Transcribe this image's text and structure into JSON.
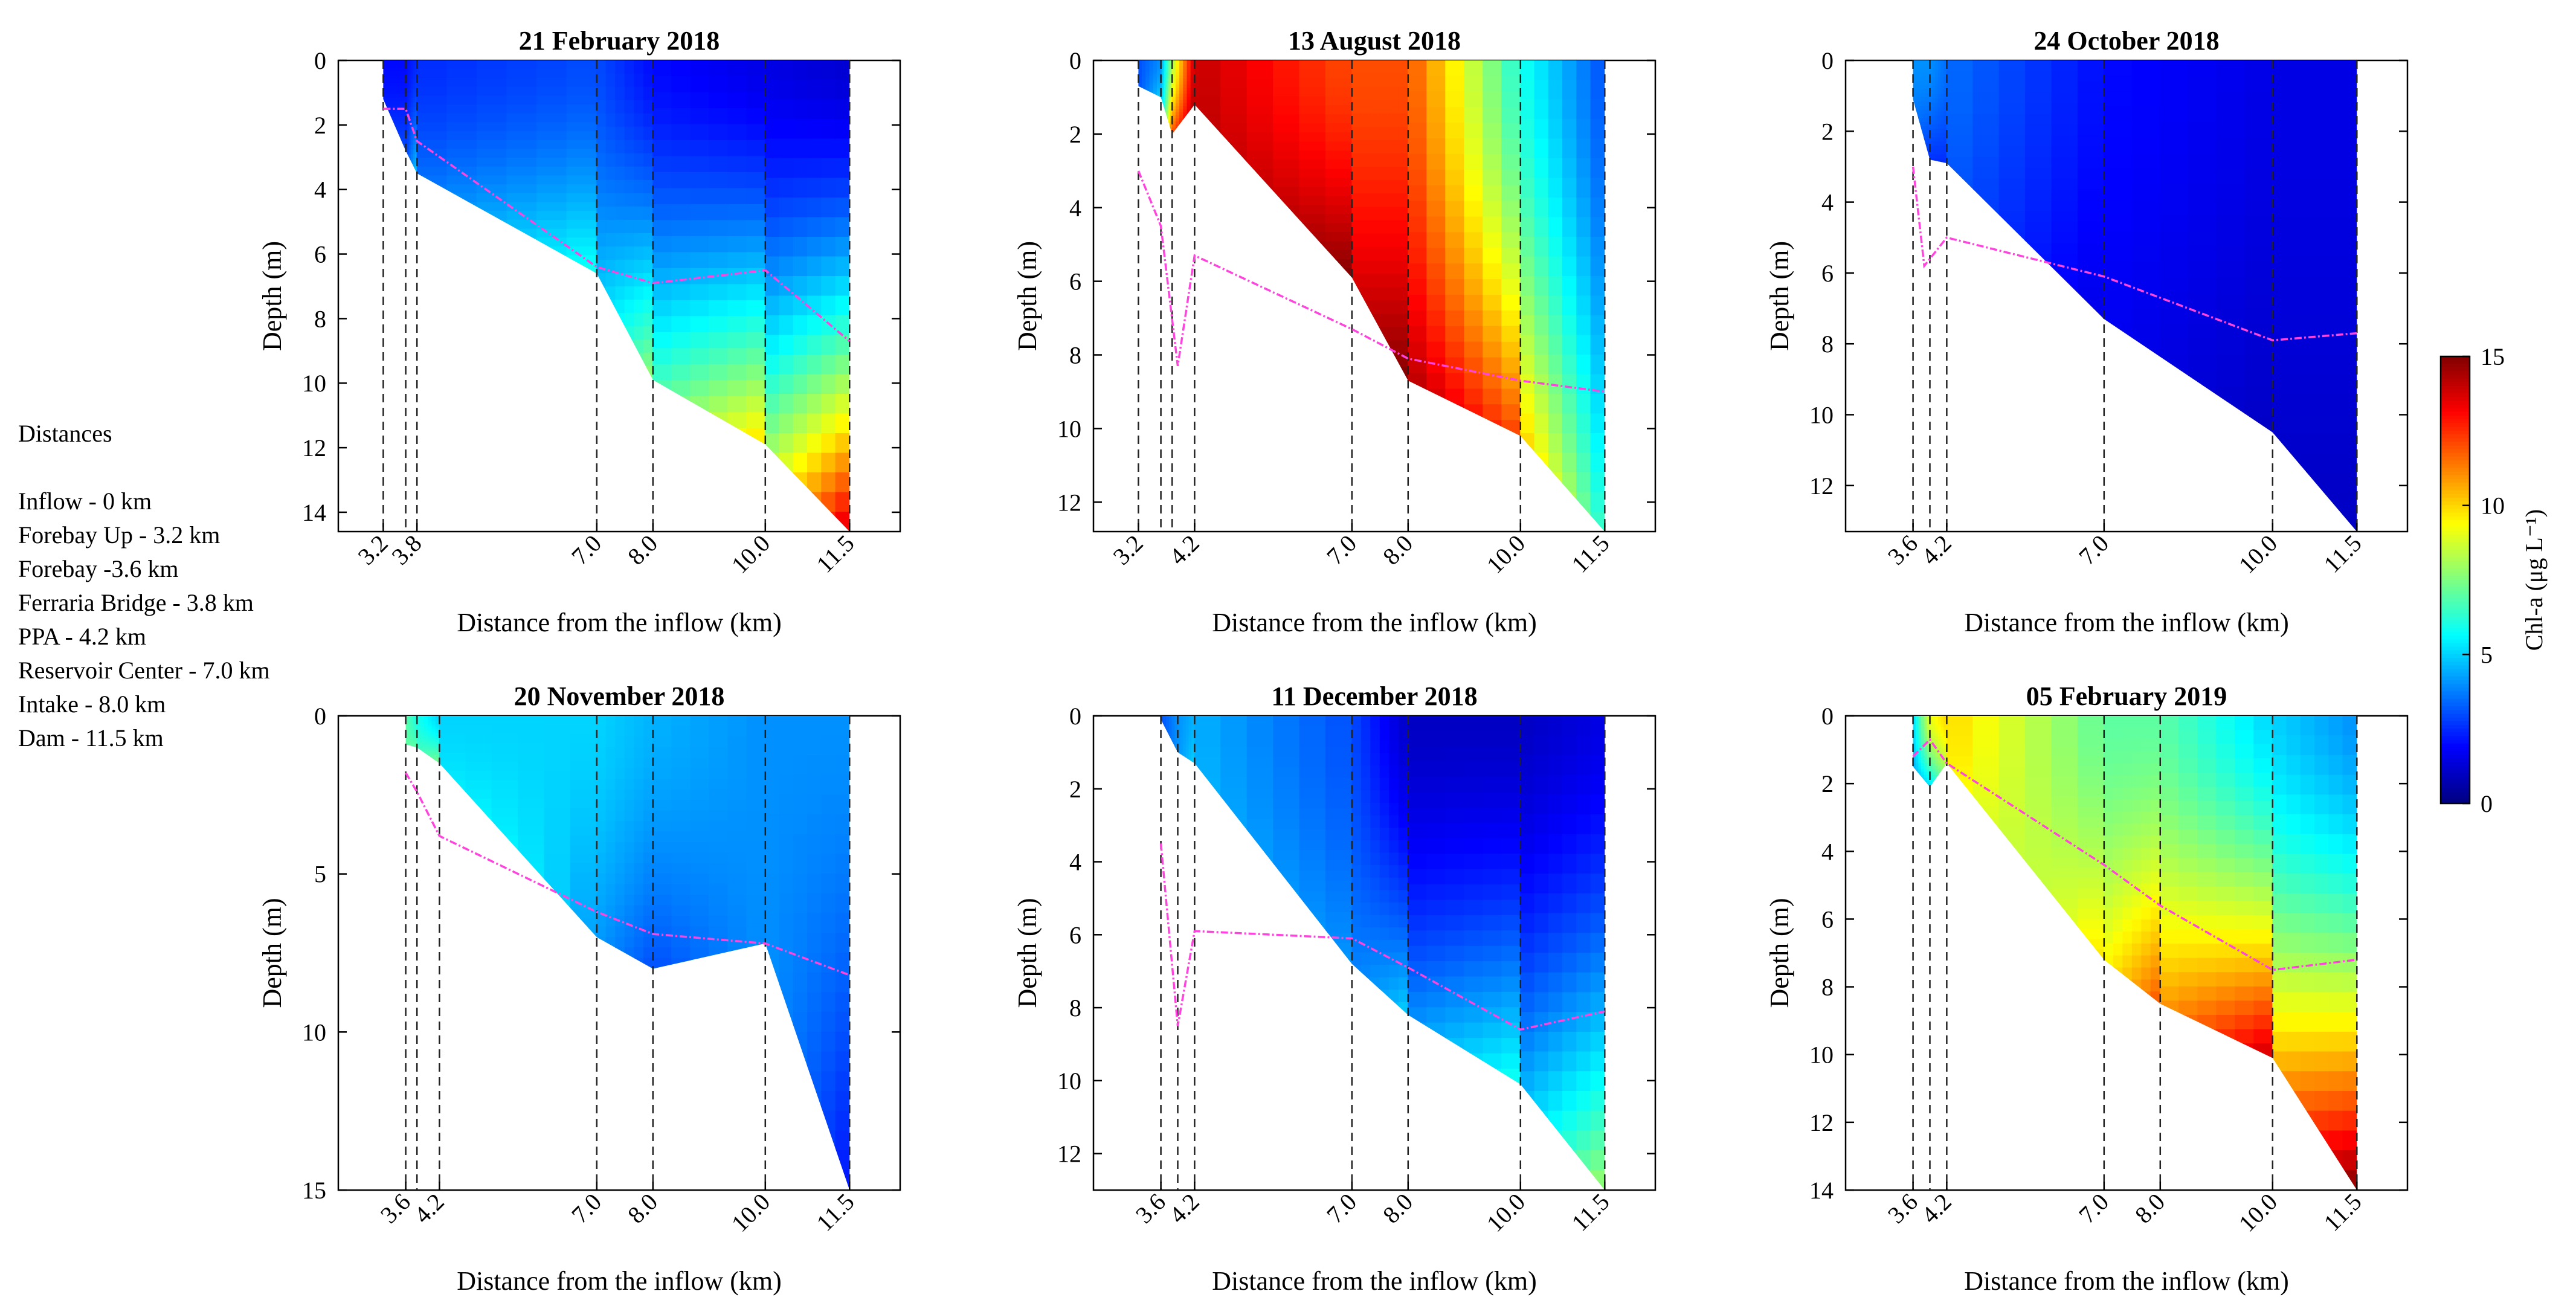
{
  "legend": {
    "heading": "Distances",
    "items": [
      "Inflow - 0 km",
      "Forebay Up - 3.2 km",
      "Forebay -3.6 km",
      "Ferraria Bridge - 3.8 km",
      "PPA - 4.2 km",
      "Reservoir Center - 7.0 km",
      "Intake - 8.0 km",
      "Dam - 11.5 km"
    ]
  },
  "colorbar": {
    "label": "Chl-a (μg L⁻¹)",
    "min": 0,
    "max": 15,
    "ticks": [
      "0",
      "5",
      "10",
      "15"
    ],
    "colormap": "jet"
  },
  "chart_data": [
    {
      "type": "heatmap",
      "title": "21 February 2018",
      "xlabel": "Distance from the inflow (km)",
      "ylabel": "Depth (m)",
      "xlim": [
        2.4,
        12.4
      ],
      "ylim": [
        0,
        14.6
      ],
      "yticks": [
        0,
        2,
        4,
        6,
        8,
        10,
        12,
        14
      ],
      "station_ticks": [
        3.2,
        3.8,
        7.0,
        8.0,
        10.0,
        11.5
      ],
      "stations": [
        3.2,
        3.6,
        3.8,
        7.0,
        8.0,
        10.0,
        11.5
      ],
      "bottom_depth": [
        1.2,
        2.8,
        3.5,
        6.6,
        9.9,
        11.9,
        14.6
      ],
      "pink_line": [
        [
          3.2,
          1.5
        ],
        [
          3.6,
          1.5
        ],
        [
          3.8,
          2.5
        ],
        [
          7.0,
          6.4
        ],
        [
          8.0,
          6.9
        ],
        [
          10.0,
          6.5
        ],
        [
          11.5,
          8.7
        ]
      ],
      "chl_a_by_station": [
        2,
        2,
        2.5,
        3,
        2,
        1.5,
        1.2
      ],
      "chl_a_at_bottom": [
        3,
        3,
        5,
        6,
        8,
        10,
        14
      ]
    },
    {
      "type": "heatmap",
      "title": "13 August 2018",
      "xlabel": "Distance from the inflow (km)",
      "ylabel": "Depth (m)",
      "xlim": [
        2.4,
        12.4
      ],
      "ylim": [
        0,
        12.8
      ],
      "yticks": [
        0,
        2,
        4,
        6,
        8,
        10,
        12
      ],
      "station_ticks": [
        3.2,
        4.2,
        7.0,
        8.0,
        10.0,
        11.5
      ],
      "stations": [
        3.2,
        3.6,
        3.8,
        4.2,
        7.0,
        8.0,
        10.0,
        11.5
      ],
      "bottom_depth": [
        0.7,
        1.0,
        2.0,
        1.2,
        5.9,
        8.7,
        10.2,
        12.8
      ],
      "pink_line": [
        [
          3.2,
          3.0
        ],
        [
          3.6,
          4.5
        ],
        [
          3.9,
          8.3
        ],
        [
          4.2,
          5.3
        ],
        [
          7.0,
          7.3
        ],
        [
          8.0,
          8.1
        ],
        [
          10.0,
          8.7
        ],
        [
          11.5,
          9.0
        ]
      ],
      "chl_a_by_station": [
        3,
        4,
        8,
        14,
        12,
        12,
        6,
        3
      ],
      "chl_a_at_bottom": [
        3,
        5,
        12,
        15,
        15,
        15,
        12,
        6
      ]
    },
    {
      "type": "heatmap",
      "title": "24 October 2018",
      "xlabel": "Distance from the inflow (km)",
      "ylabel": "Depth (m)",
      "xlim": [
        2.4,
        12.4
      ],
      "ylim": [
        0,
        13.3
      ],
      "yticks": [
        0,
        2,
        4,
        6,
        8,
        10,
        12
      ],
      "station_ticks": [
        3.6,
        4.2,
        7.0,
        10.0,
        11.5
      ],
      "stations": [
        3.6,
        3.9,
        4.2,
        7.0,
        10.0,
        11.5
      ],
      "bottom_depth": [
        1.1,
        2.8,
        2.9,
        7.3,
        10.5,
        13.3
      ],
      "pink_line": [
        [
          3.6,
          3.0
        ],
        [
          3.8,
          5.8
        ],
        [
          4.2,
          5.0
        ],
        [
          7.0,
          6.1
        ],
        [
          10.0,
          7.9
        ],
        [
          11.5,
          7.7
        ]
      ],
      "chl_a_by_station": [
        4,
        4,
        3.5,
        2,
        1.5,
        1.5
      ],
      "chl_a_at_bottom": [
        3,
        2.5,
        2.5,
        1.5,
        1,
        1
      ]
    },
    {
      "type": "heatmap",
      "title": "20 November 2018",
      "xlabel": "Distance from the inflow (km)",
      "ylabel": "Depth (m)",
      "xlim": [
        2.4,
        12.4
      ],
      "ylim": [
        0,
        15
      ],
      "yticks": [
        0,
        5,
        10,
        15
      ],
      "station_ticks": [
        3.6,
        4.2,
        7.0,
        8.0,
        10.0,
        11.5
      ],
      "stations": [
        3.6,
        3.8,
        4.2,
        7.0,
        8.0,
        10.0,
        11.5
      ],
      "bottom_depth": [
        0.9,
        1.0,
        1.5,
        7.0,
        8.0,
        7.2,
        15.0
      ],
      "pink_line": [
        [
          3.6,
          1.8
        ],
        [
          3.8,
          2.4
        ],
        [
          4.2,
          3.8
        ],
        [
          7.0,
          6.2
        ],
        [
          8.0,
          6.9
        ],
        [
          10.0,
          7.2
        ],
        [
          11.5,
          8.2
        ]
      ],
      "chl_a_by_station": [
        7,
        6,
        5,
        5,
        4.5,
        4,
        4
      ],
      "chl_a_at_bottom": [
        7,
        7,
        7.5,
        4,
        3,
        4,
        2
      ]
    },
    {
      "type": "heatmap",
      "title": "11 December 2018",
      "xlabel": "Distance from the inflow (km)",
      "ylabel": "Depth (m)",
      "xlim": [
        2.4,
        12.4
      ],
      "ylim": [
        0,
        13
      ],
      "yticks": [
        0,
        2,
        4,
        6,
        8,
        10,
        12
      ],
      "station_ticks": [
        3.6,
        4.2,
        7.0,
        8.0,
        10.0,
        11.5
      ],
      "stations": [
        3.6,
        3.9,
        4.2,
        7.0,
        8.0,
        10.0,
        11.5
      ],
      "bottom_depth": [
        0.1,
        1.0,
        1.3,
        6.8,
        8.2,
        10.1,
        13.0
      ],
      "pink_line": [
        [
          3.6,
          3.5
        ],
        [
          3.9,
          8.5
        ],
        [
          4.2,
          5.9
        ],
        [
          7.0,
          6.1
        ],
        [
          8.0,
          6.9
        ],
        [
          10.0,
          8.6
        ],
        [
          11.5,
          8.1
        ]
      ],
      "chl_a_by_station": [
        3,
        4,
        4.5,
        3,
        1,
        1,
        1.5
      ],
      "chl_a_at_bottom": [
        3,
        4,
        5,
        4,
        5,
        6,
        8
      ]
    },
    {
      "type": "heatmap",
      "title": "05 February 2019",
      "xlabel": "Distance from the inflow (km)",
      "ylabel": "Depth (m)",
      "xlim": [
        2.4,
        12.4
      ],
      "ylim": [
        0,
        14
      ],
      "yticks": [
        0,
        2,
        4,
        6,
        8,
        10,
        12,
        14
      ],
      "station_ticks": [
        3.6,
        4.2,
        7.0,
        8.0,
        10.0,
        11.5
      ],
      "stations": [
        3.6,
        3.9,
        4.2,
        7.0,
        8.0,
        10.0,
        11.5
      ],
      "bottom_depth": [
        1.5,
        2.1,
        1.4,
        7.2,
        8.5,
        10.1,
        14.0
      ],
      "pink_line": [
        [
          3.6,
          1.2
        ],
        [
          3.9,
          0.7
        ],
        [
          4.2,
          1.4
        ],
        [
          7.0,
          4.4
        ],
        [
          8.0,
          5.6
        ],
        [
          10.0,
          7.5
        ],
        [
          11.5,
          7.2
        ]
      ],
      "chl_a_by_station": [
        5,
        9,
        10,
        7,
        7,
        5,
        4
      ],
      "chl_a_at_bottom": [
        4,
        5,
        7,
        10,
        12,
        14,
        15
      ]
    }
  ]
}
